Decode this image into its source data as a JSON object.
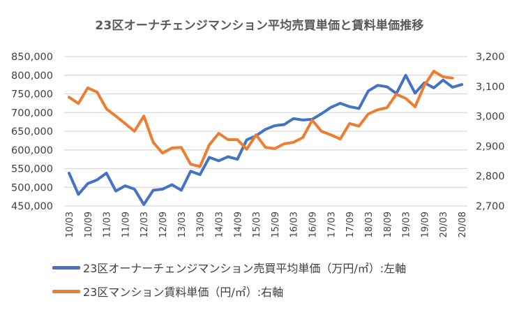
{
  "chart_data": {
    "type": "line",
    "title": "23区オーナチェンジマンション平均売買単価と賃料単価推移",
    "xlabel": "",
    "ylabel_left": "",
    "ylabel_right": "",
    "grid": true,
    "legend_position": "bottom",
    "x": [
      "10/03",
      "10/06",
      "10/09",
      "10/12",
      "11/03",
      "11/06",
      "11/09",
      "11/12",
      "12/03",
      "12/06",
      "12/09",
      "12/12",
      "13/03",
      "13/06",
      "13/09",
      "13/12",
      "14/03",
      "14/06",
      "14/09",
      "14/12",
      "15/03",
      "15/06",
      "15/09",
      "15/12",
      "16/03",
      "16/06",
      "16/09",
      "16/12",
      "17/03",
      "17/06",
      "17/09",
      "17/12",
      "18/03",
      "18/06",
      "18/09",
      "18/12",
      "19/03",
      "19/06",
      "19/09",
      "19/12",
      "20/03",
      "20/06",
      "20/08"
    ],
    "x_tick_labels": [
      "10/03",
      "10/09",
      "11/03",
      "11/09",
      "12/03",
      "12/09",
      "13/03",
      "13/09",
      "14/03",
      "14/09",
      "15/03",
      "15/09",
      "16/03",
      "16/09",
      "17/03",
      "17/09",
      "18/03",
      "18/09",
      "19/03",
      "19/09",
      "20/03",
      "20/08"
    ],
    "y_left": {
      "range": [
        450000,
        850000
      ],
      "ticks": [
        450000,
        500000,
        550000,
        600000,
        650000,
        700000,
        750000,
        800000,
        850000
      ],
      "tick_labels": [
        "450,000",
        "500,000",
        "550,000",
        "600,000",
        "650,000",
        "700,000",
        "750,000",
        "800,000",
        "850,000"
      ]
    },
    "y_right": {
      "range": [
        2700,
        3200
      ],
      "ticks": [
        2700,
        2800,
        2900,
        3000,
        3100,
        3200
      ],
      "tick_labels": [
        "2,700",
        "2,800",
        "2,900",
        "3,000",
        "3,100",
        "3,200"
      ]
    },
    "series": [
      {
        "name": "23区オーナーチェンジマンション売買平均単価（万円/㎡）:左軸",
        "axis": "left",
        "color": "#4472C4",
        "values": [
          538000,
          481000,
          510000,
          520000,
          538000,
          490000,
          504000,
          495000,
          454000,
          492000,
          495000,
          507000,
          492000,
          543000,
          534000,
          580000,
          571000,
          582000,
          575000,
          627000,
          638000,
          655000,
          665000,
          668000,
          684000,
          680000,
          682000,
          697000,
          714000,
          725000,
          716000,
          711000,
          758000,
          773000,
          769000,
          751000,
          800000,
          752000,
          780000,
          766000,
          787000,
          768000,
          775000
        ]
      },
      {
        "name": "23区マンション賃料単価（円/㎡）:右軸",
        "axis": "right",
        "color": "#ED7D31",
        "values": [
          3064,
          3043,
          3095,
          3081,
          3025,
          3001,
          2976,
          2950,
          3001,
          2913,
          2877,
          2894,
          2896,
          2840,
          2832,
          2905,
          2943,
          2922,
          2922,
          2890,
          2938,
          2896,
          2892,
          2908,
          2913,
          2929,
          2987,
          2950,
          2938,
          2924,
          2976,
          2967,
          3008,
          3022,
          3029,
          3074,
          3060,
          3032,
          3104,
          3151,
          3132,
          3128,
          null
        ]
      }
    ]
  },
  "legend": [
    {
      "label": "23区オーナーチェンジマンション売買平均単価（万円/㎡）:左軸",
      "color": "#4472C4"
    },
    {
      "label": "23区マンション賃料単価（円/㎡）:右軸",
      "color": "#ED7D31"
    }
  ],
  "colors": {
    "gridline": "#D9D9D9",
    "text": "#404040",
    "title": "#595959"
  }
}
